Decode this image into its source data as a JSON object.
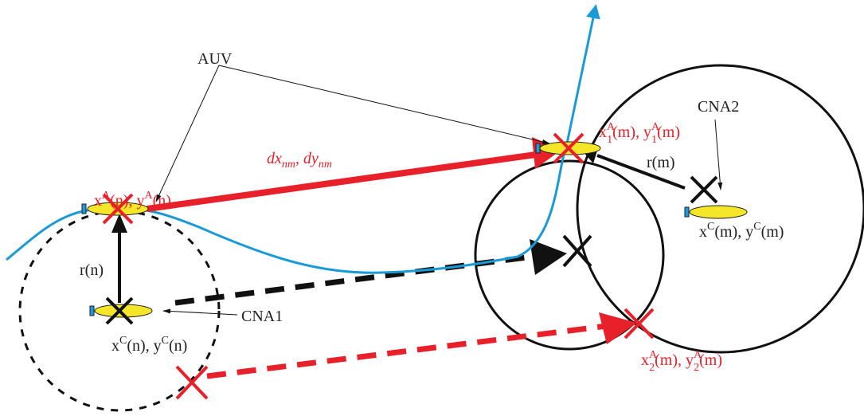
{
  "labels": {
    "auv": "AUV",
    "cna1": "CNA1",
    "cna2": "CNA2",
    "dxdy": [
      "dx",
      "nm",
      ", dy",
      "nm"
    ],
    "auv_n": [
      "x",
      "A",
      "(n), y",
      "A",
      "(n)"
    ],
    "auv_m1": [
      "x",
      "A",
      "1",
      "(m), y",
      "A",
      "1",
      "(m)"
    ],
    "auv_m2": [
      "x",
      "A",
      "2",
      "(m), y",
      "A",
      "2",
      "(m)"
    ],
    "cna_n": [
      "x",
      "C",
      "(n), y",
      "C",
      "(n)"
    ],
    "cna_m": [
      "x",
      "C",
      "(m), y",
      "C",
      "(m)"
    ],
    "r_n": "r(n)",
    "r_m": "r(m)"
  }
}
